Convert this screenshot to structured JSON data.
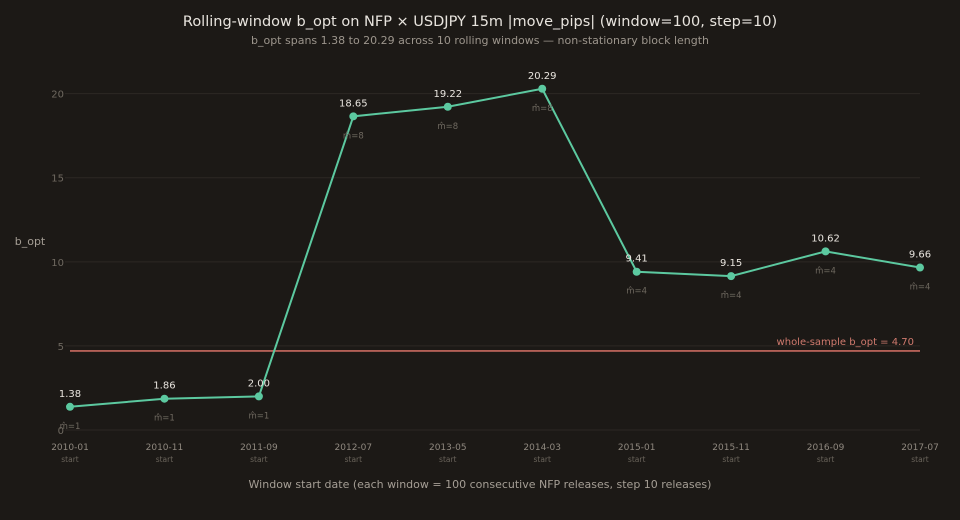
{
  "chart_data": {
    "type": "line",
    "title": "Rolling-window b_opt on NFP × USDJPY 15m |move_pips| (window=100, step=10)",
    "subtitle": "b_opt spans 1.38 to 20.29 across 10 rolling windows — non-stationary block length",
    "xlabel": "Window start date (each window = 100 consecutive NFP releases, step 10 releases)",
    "ylabel": "b_opt",
    "ylim": [
      0,
      22
    ],
    "yticks": [
      0,
      5,
      10,
      15,
      20
    ],
    "grid": true,
    "categories": [
      "2010-01",
      "2010-11",
      "2011-09",
      "2012-07",
      "2013-05",
      "2014-03",
      "2015-01",
      "2015-11",
      "2016-09",
      "2017-07"
    ],
    "category_sub": "start",
    "series": [
      {
        "values": [
          1.38,
          1.86,
          2.0,
          18.65,
          19.22,
          20.29,
          9.41,
          9.15,
          10.62,
          9.66
        ],
        "value_labels": [
          "1.38",
          "1.86",
          "2.00",
          "18.65",
          "19.22",
          "20.29",
          "9.41",
          "9.15",
          "10.62",
          "9.66"
        ],
        "m_labels": [
          "m̂=1",
          "m̂=1",
          "m̂=1",
          "m̂=8",
          "m̂=8",
          "m̂=8",
          "m̂=4",
          "m̂=4",
          "m̂=4",
          "m̂=4"
        ],
        "color": "#5cc9a0"
      }
    ],
    "reference_line": {
      "value": 4.7,
      "label": "whole-sample b_opt = 4.70",
      "color": "#c96b60"
    }
  }
}
